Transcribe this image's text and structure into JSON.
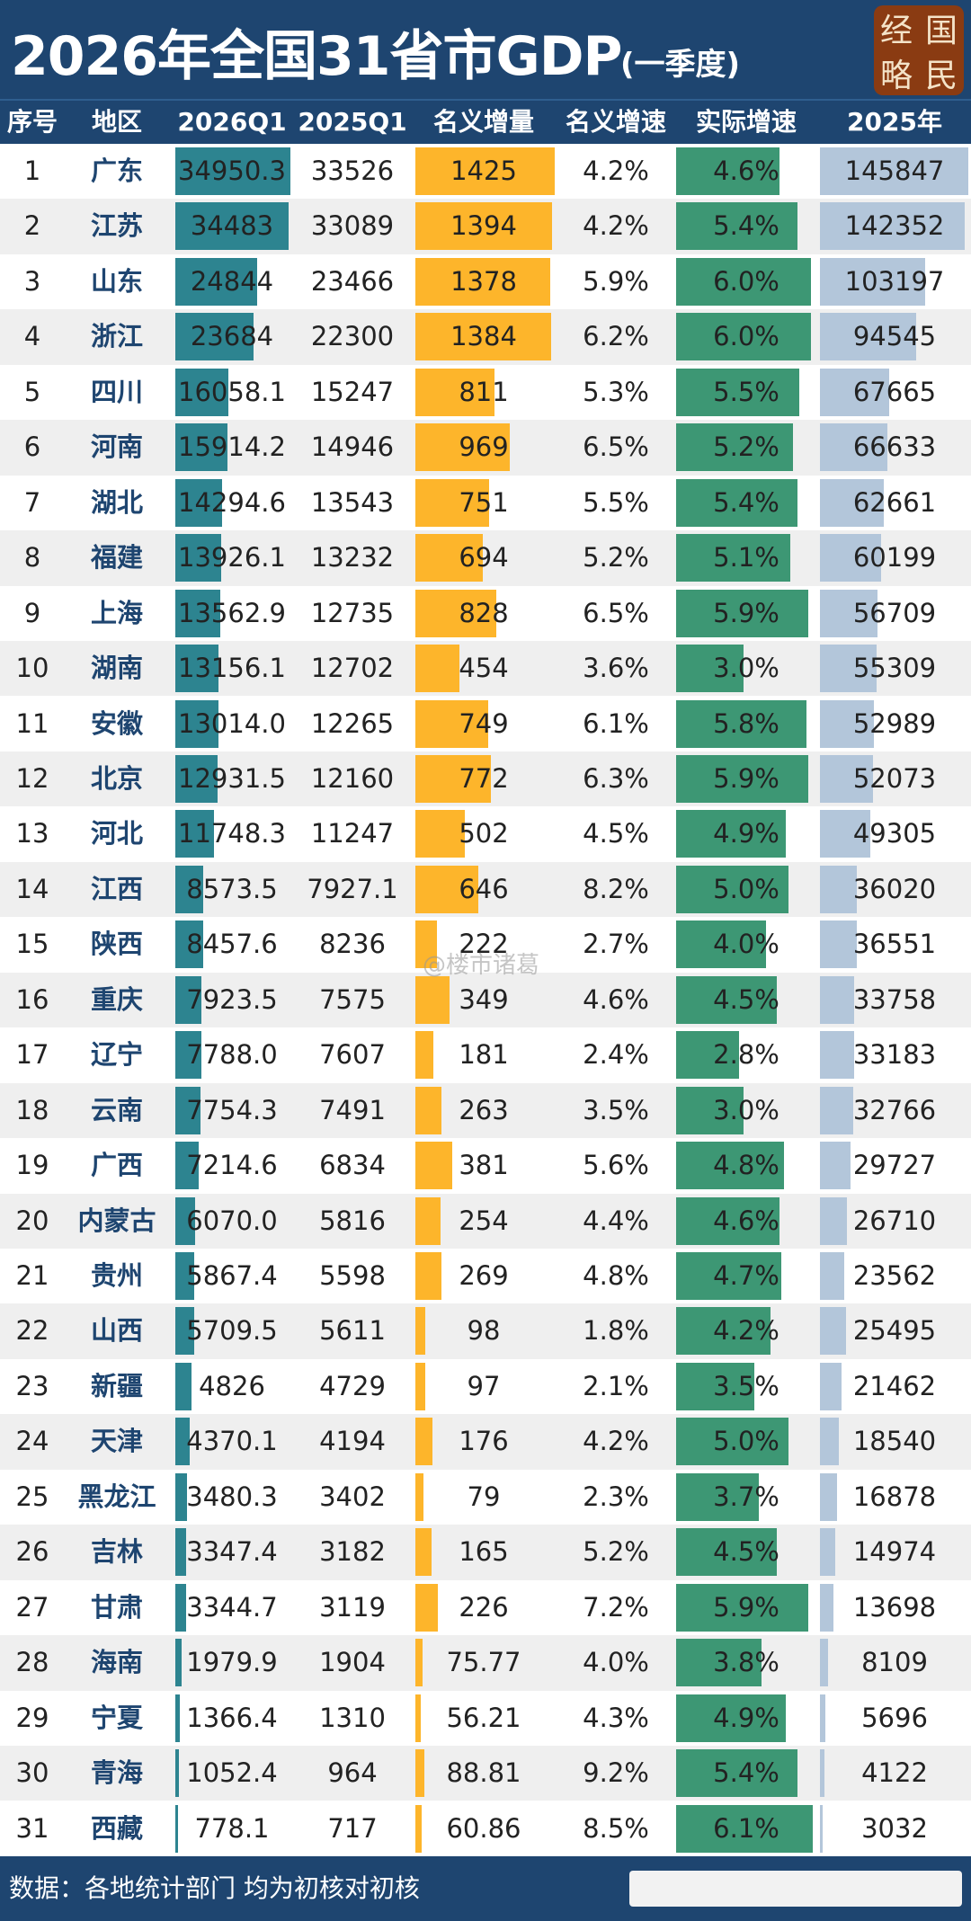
{
  "header": {
    "title_main": "2026年全国31省市GDP",
    "title_sub": "(一季度)",
    "seal_chars": [
      "经",
      "国",
      "略",
      "民"
    ]
  },
  "watermark": "@楼市诸葛",
  "footer": {
    "text": "数据：各地统计部门  均为初核对初核"
  },
  "colors": {
    "header_bg": "#1e4570",
    "bar_2026q1": "#2d8490",
    "bar_nominal_increase": "#fdb52b",
    "bar_real_growth": "#3d9774",
    "bar_2025": "#b3c6da",
    "row_alt": "#efefef"
  },
  "chart_data": {
    "type": "table",
    "columns": [
      "序号",
      "地区",
      "2026Q1",
      "2025Q1",
      "名义增量",
      "名义增速",
      "实际增速",
      "2025年"
    ],
    "rows": [
      [
        "1",
        "广东",
        "34950.3",
        "33526",
        "1425",
        "4.2%",
        "4.6%",
        "145847"
      ],
      [
        "2",
        "江苏",
        "34483",
        "33089",
        "1394",
        "4.2%",
        "5.4%",
        "142352"
      ],
      [
        "3",
        "山东",
        "24844",
        "23466",
        "1378",
        "5.9%",
        "6.0%",
        "103197"
      ],
      [
        "4",
        "浙江",
        "23684",
        "22300",
        "1384",
        "6.2%",
        "6.0%",
        "94545"
      ],
      [
        "5",
        "四川",
        "16058.1",
        "15247",
        "811",
        "5.3%",
        "5.5%",
        "67665"
      ],
      [
        "6",
        "河南",
        "15914.2",
        "14946",
        "969",
        "6.5%",
        "5.2%",
        "66633"
      ],
      [
        "7",
        "湖北",
        "14294.6",
        "13543",
        "751",
        "5.5%",
        "5.4%",
        "62661"
      ],
      [
        "8",
        "福建",
        "13926.1",
        "13232",
        "694",
        "5.2%",
        "5.1%",
        "60199"
      ],
      [
        "9",
        "上海",
        "13562.9",
        "12735",
        "828",
        "6.5%",
        "5.9%",
        "56709"
      ],
      [
        "10",
        "湖南",
        "13156.1",
        "12702",
        "454",
        "3.6%",
        "3.0%",
        "55309"
      ],
      [
        "11",
        "安徽",
        "13014.0",
        "12265",
        "749",
        "6.1%",
        "5.8%",
        "52989"
      ],
      [
        "12",
        "北京",
        "12931.5",
        "12160",
        "772",
        "6.3%",
        "5.9%",
        "52073"
      ],
      [
        "13",
        "河北",
        "11748.3",
        "11247",
        "502",
        "4.5%",
        "4.9%",
        "49305"
      ],
      [
        "14",
        "江西",
        "8573.5",
        "7927.1",
        "646",
        "8.2%",
        "5.0%",
        "36020"
      ],
      [
        "15",
        "陕西",
        "8457.6",
        "8236",
        "222",
        "2.7%",
        "4.0%",
        "36551"
      ],
      [
        "16",
        "重庆",
        "7923.5",
        "7575",
        "349",
        "4.6%",
        "4.5%",
        "33758"
      ],
      [
        "17",
        "辽宁",
        "7788.0",
        "7607",
        "181",
        "2.4%",
        "2.8%",
        "33183"
      ],
      [
        "18",
        "云南",
        "7754.3",
        "7491",
        "263",
        "3.5%",
        "3.0%",
        "32766"
      ],
      [
        "19",
        "广西",
        "7214.6",
        "6834",
        "381",
        "5.6%",
        "4.8%",
        "29727"
      ],
      [
        "20",
        "内蒙古",
        "6070.0",
        "5816",
        "254",
        "4.4%",
        "4.6%",
        "26710"
      ],
      [
        "21",
        "贵州",
        "5867.4",
        "5598",
        "269",
        "4.8%",
        "4.7%",
        "23562"
      ],
      [
        "22",
        "山西",
        "5709.5",
        "5611",
        "98",
        "1.8%",
        "4.2%",
        "25495"
      ],
      [
        "23",
        "新疆",
        "4826",
        "4729",
        "97",
        "2.1%",
        "3.5%",
        "21462"
      ],
      [
        "24",
        "天津",
        "4370.1",
        "4194",
        "176",
        "4.2%",
        "5.0%",
        "18540"
      ],
      [
        "25",
        "黑龙江",
        "3480.3",
        "3402",
        "79",
        "2.3%",
        "3.7%",
        "16878"
      ],
      [
        "26",
        "吉林",
        "3347.4",
        "3182",
        "165",
        "5.2%",
        "4.5%",
        "14974"
      ],
      [
        "27",
        "甘肃",
        "3344.7",
        "3119",
        "226",
        "7.2%",
        "5.9%",
        "13698"
      ],
      [
        "28",
        "海南",
        "1979.9",
        "1904",
        "75.77",
        "4.0%",
        "3.8%",
        "8109"
      ],
      [
        "29",
        "宁夏",
        "1366.4",
        "1310",
        "56.21",
        "4.3%",
        "4.9%",
        "5696"
      ],
      [
        "30",
        "青海",
        "1052.4",
        "964",
        "88.81",
        "9.2%",
        "5.4%",
        "4122"
      ],
      [
        "31",
        "西藏",
        "778.1",
        "717",
        "60.86",
        "8.5%",
        "6.1%",
        "3032"
      ]
    ]
  }
}
